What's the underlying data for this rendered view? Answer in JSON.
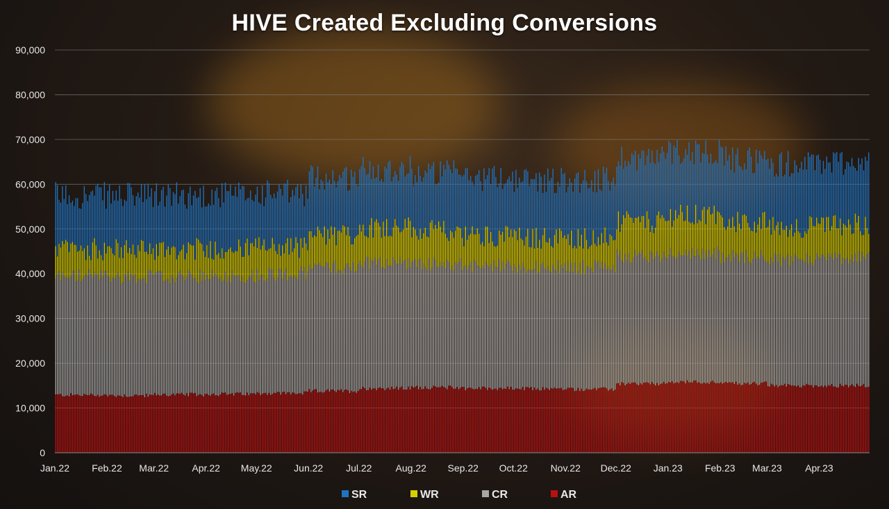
{
  "chart_data": {
    "type": "bar",
    "stacked": true,
    "title": "HIVE Created Excluding Conversions",
    "xlabel": "",
    "ylabel": "",
    "ylim": [
      0,
      90000
    ],
    "y_ticks": [
      0,
      10000,
      20000,
      30000,
      40000,
      50000,
      60000,
      70000,
      80000,
      90000
    ],
    "y_tick_labels": [
      "0",
      "10,000",
      "20,000",
      "30,000",
      "40,000",
      "50,000",
      "60,000",
      "70,000",
      "80,000",
      "90,000"
    ],
    "x_tick_labels": [
      "Jan.22",
      "Feb.22",
      "Mar.22",
      "Apr.22",
      "May.22",
      "Jun.22",
      "Jul.22",
      "Aug.22",
      "Sep.22",
      "Oct.22",
      "Nov.22",
      "Dec.22",
      "Jan.23",
      "Feb.23",
      "Mar.23",
      "Apr.23"
    ],
    "granularity": "daily",
    "days_per_month": [
      31,
      28,
      31,
      30,
      31,
      30,
      31,
      31,
      30,
      31,
      30,
      31,
      31,
      28,
      31,
      30
    ],
    "monthly_avg_cumulative": {
      "note": "approximate daily cumulative stack tops per month, in HIVE",
      "AR_top": [
        12900,
        12800,
        13000,
        13100,
        13300,
        13800,
        14400,
        14600,
        14400,
        14300,
        14200,
        15400,
        15800,
        15500,
        15000,
        15000
      ],
      "CR_top": [
        39500,
        39300,
        39300,
        39500,
        40000,
        41500,
        42500,
        42200,
        41800,
        41500,
        41500,
        44000,
        44500,
        43800,
        43200,
        43500
      ],
      "WR_top": [
        45500,
        45400,
        45500,
        45600,
        46000,
        48500,
        50500,
        49500,
        48500,
        48000,
        48000,
        51500,
        53000,
        51500,
        50500,
        51000
      ],
      "SR_top": [
        57500,
        57400,
        57500,
        57600,
        58000,
        61500,
        63500,
        62500,
        61500,
        61000,
        61000,
        66000,
        67500,
        65500,
        64500,
        65000
      ]
    },
    "series": [
      {
        "name": "SR",
        "color": "#1f73c2"
      },
      {
        "name": "WR",
        "color": "#d6d000"
      },
      {
        "name": "CR",
        "color": "#a6a6a6"
      },
      {
        "name": "AR",
        "color": "#b81010"
      }
    ],
    "legend_position": "bottom"
  }
}
